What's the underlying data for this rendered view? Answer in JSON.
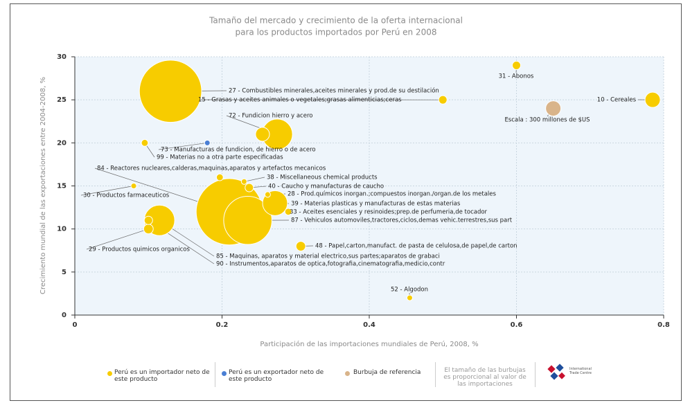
{
  "chart_data": {
    "type": "bubble",
    "title": "Tamaño del mercado y crecimiento de la oferta internacional",
    "subtitle": "para los productos importados por Perú en 2008",
    "xlabel": "Participación de las importaciones mundiales de Perú, 2008, %",
    "ylabel": "Crecimiento mundial de las exportaciones entre 2004-2008, %",
    "xlim": [
      0,
      0.8
    ],
    "xticks": [
      0,
      0.2,
      0.4,
      0.6,
      0.8
    ],
    "ylim": [
      0,
      30
    ],
    "yticks": [
      0,
      5,
      10,
      15,
      20,
      25,
      30
    ],
    "grid": true,
    "size_note": "El tamaño de las burbujas es proporcional al valor de las importaciones",
    "logo": "International Trade Centre",
    "series": [
      {
        "name": "Perú es un importador neto de este producto",
        "color": "#f7cc00",
        "labels": [
          "27 - Combustibles minerales,aceites minerales y prod.de su destilación",
          "84 - Reactores nucleares,calderas,maquinas,aparatos y artefactos mecanicos",
          "87 - Vehiculos automoviles,tractores,ciclos,demas vehic.terrestres,sus part",
          "85 - Maquinas, aparatos y material electrico,sus partes;aparatos de grabaci",
          "72 - Fundicion hierro y acero",
          "39 - Materias plasticas y manufacturas de estas materias",
          null,
          "10 - Cereales",
          "31 - Abonos",
          "15 - Grasas y aceites animales o vegetales;grasas alimenticias;ceras",
          "99 - Materias no a otra parte especificadas",
          null,
          "38 - Miscellaneous chemical products",
          "40 - Caucho y manufacturas de caucho",
          "30 - Productos farmaceuticos",
          "28 - Prod.químicos inorgan.;compuestos inorgan./organ.de los metales",
          "33 - Aceites esenciales y resinoides;prep.de perfumeria,de tocador",
          "29 - Productos quimicos organicos",
          "90 - Instrumentos,aparatos de optica,fotografia,cinematografia,medicio,contr",
          "48 - Papel,carton,manufact. de pasta de celulosa,de papel,de carton",
          "52 - Algodon"
        ],
        "x": [
          0.13,
          0.21,
          0.235,
          0.115,
          0.275,
          0.272,
          0.255,
          0.785,
          0.6,
          0.5,
          0.095,
          0.197,
          0.23,
          0.237,
          0.08,
          0.262,
          0.29,
          0.1,
          0.1,
          0.307,
          0.455
        ],
        "values": [
          26,
          12,
          11,
          11,
          21,
          13,
          21,
          25,
          29,
          25,
          20,
          16,
          15.5,
          14.8,
          15,
          14,
          12,
          10,
          11,
          8,
          2
        ],
        "sizes": [
          5000,
          5700,
          3000,
          1200,
          1200,
          800,
          250,
          300,
          90,
          90,
          60,
          60,
          40,
          90,
          40,
          40,
          60,
          120,
          90,
          120,
          40
        ]
      },
      {
        "name": "Perú es un exportador neto de este producto",
        "color": "#4a7fd4",
        "labels": [
          "73 - Manufacturas de fundicion, de hierro o de acero"
        ],
        "x": [
          0.18
        ],
        "values": [
          20
        ],
        "sizes": [
          40
        ]
      },
      {
        "name": "Burbuja de referencia",
        "color": "#d9b48a",
        "labels": [
          "Escala : 300 millones de $US"
        ],
        "x": [
          0.65
        ],
        "values": [
          24
        ],
        "sizes": [
          300
        ]
      }
    ]
  }
}
